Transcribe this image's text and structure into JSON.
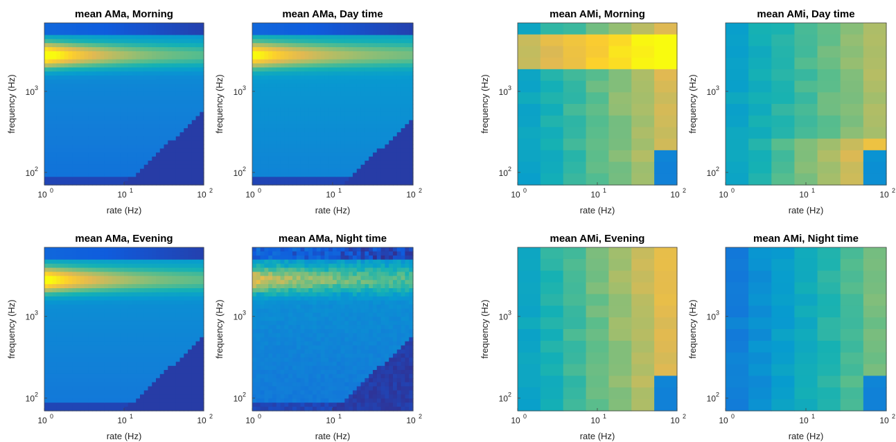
{
  "chart_data": [
    {
      "type": "heatmap",
      "title": "mean AMa, Morning",
      "xlabel": "rate (Hz)",
      "ylabel": "frequency (Hz)",
      "xscale": "log",
      "yscale": "log",
      "xlim": [
        1,
        100
      ],
      "ylim": [
        70,
        7000
      ],
      "grid": false,
      "x_ticks": [
        "10^0",
        "10^1",
        "10^2"
      ],
      "y_ticks": [
        "10^2",
        "10^3"
      ],
      "hotspot": {
        "x": 1.3,
        "y": 3500,
        "level": 1.0
      },
      "dark_region": "low frequency, high rate"
    },
    {
      "type": "heatmap",
      "title": "mean AMa, Day time",
      "xlabel": "rate (Hz)",
      "ylabel": "frequency (Hz)",
      "xscale": "log",
      "yscale": "log",
      "xlim": [
        1,
        100
      ],
      "ylim": [
        70,
        7000
      ],
      "grid": false,
      "x_ticks": [
        "10^0",
        "10^1",
        "10^2"
      ],
      "y_ticks": [
        "10^2",
        "10^3"
      ],
      "hotspot": {
        "x": 1.5,
        "y": 3500,
        "level": 0.85
      },
      "dark_region": "low frequency, high rate"
    },
    {
      "type": "heatmap",
      "title": "mean AMi, Morning",
      "xlabel": "rate (Hz)",
      "ylabel": "frequency (Hz)",
      "xscale": "log",
      "yscale": "log",
      "xlim": [
        1,
        100
      ],
      "ylim": [
        70,
        7000
      ],
      "grid": false,
      "x_ticks": [
        "10^0",
        "10^1",
        "10^2"
      ],
      "y_ticks": [
        "10^2",
        "10^3"
      ],
      "hotspot": {
        "x": 6,
        "y": 3500,
        "level": 0.95
      },
      "dark_region": "none"
    },
    {
      "type": "heatmap",
      "title": "mean AMi, Day time",
      "xlabel": "rate (Hz)",
      "ylabel": "frequency (Hz)",
      "xscale": "log",
      "yscale": "log",
      "xlim": [
        1,
        100
      ],
      "ylim": [
        70,
        7000
      ],
      "grid": false,
      "x_ticks": [
        "10^0",
        "10^1",
        "10^2"
      ],
      "y_ticks": [
        "10^2",
        "10^3"
      ],
      "hotspot": {
        "x": 20,
        "y": 120,
        "level": 0.85
      },
      "dark_region": "none"
    },
    {
      "type": "heatmap",
      "title": "mean AMa, Evening",
      "xlabel": "rate (Hz)",
      "ylabel": "frequency (Hz)",
      "xscale": "log",
      "yscale": "log",
      "xlim": [
        1,
        100
      ],
      "ylim": [
        70,
        7000
      ],
      "grid": false,
      "x_ticks": [
        "10^0",
        "10^1",
        "10^2"
      ],
      "y_ticks": [
        "10^2",
        "10^3"
      ],
      "hotspot": {
        "x": 1.5,
        "y": 3500,
        "level": 0.9
      },
      "dark_region": "low frequency, high rate"
    },
    {
      "type": "heatmap",
      "title": "mean AMa, Night time",
      "xlabel": "rate (Hz)",
      "ylabel": "frequency (Hz)",
      "xscale": "log",
      "yscale": "log",
      "xlim": [
        1,
        100
      ],
      "ylim": [
        70,
        7000
      ],
      "grid": false,
      "x_ticks": [
        "10^0",
        "10^1",
        "10^2"
      ],
      "y_ticks": [
        "10^2",
        "10^3"
      ],
      "hotspot": {
        "x": 3,
        "y": 3500,
        "level": 0.6
      },
      "dark_region": "low frequency, high rate"
    },
    {
      "type": "heatmap",
      "title": "mean AMi, Evening",
      "xlabel": "rate (Hz)",
      "ylabel": "frequency (Hz)",
      "xscale": "log",
      "yscale": "log",
      "xlim": [
        1,
        100
      ],
      "ylim": [
        70,
        7000
      ],
      "grid": false,
      "x_ticks": [
        "10^0",
        "10^1",
        "10^2"
      ],
      "y_ticks": [
        "10^2",
        "10^3"
      ],
      "hotspot": {
        "x": 30,
        "y": 3000,
        "level": 0.8
      },
      "dark_region": "none"
    },
    {
      "type": "heatmap",
      "title": "mean AMi, Night time",
      "xlabel": "rate (Hz)",
      "ylabel": "frequency (Hz)",
      "xscale": "log",
      "yscale": "log",
      "xlim": [
        1,
        100
      ],
      "ylim": [
        70,
        7000
      ],
      "grid": false,
      "x_ticks": [
        "10^0",
        "10^1",
        "10^2"
      ],
      "y_ticks": [
        "10^2",
        "10^3"
      ],
      "hotspot": {
        "x": 30,
        "y": 1000,
        "level": 0.7
      },
      "dark_region": "none"
    }
  ]
}
